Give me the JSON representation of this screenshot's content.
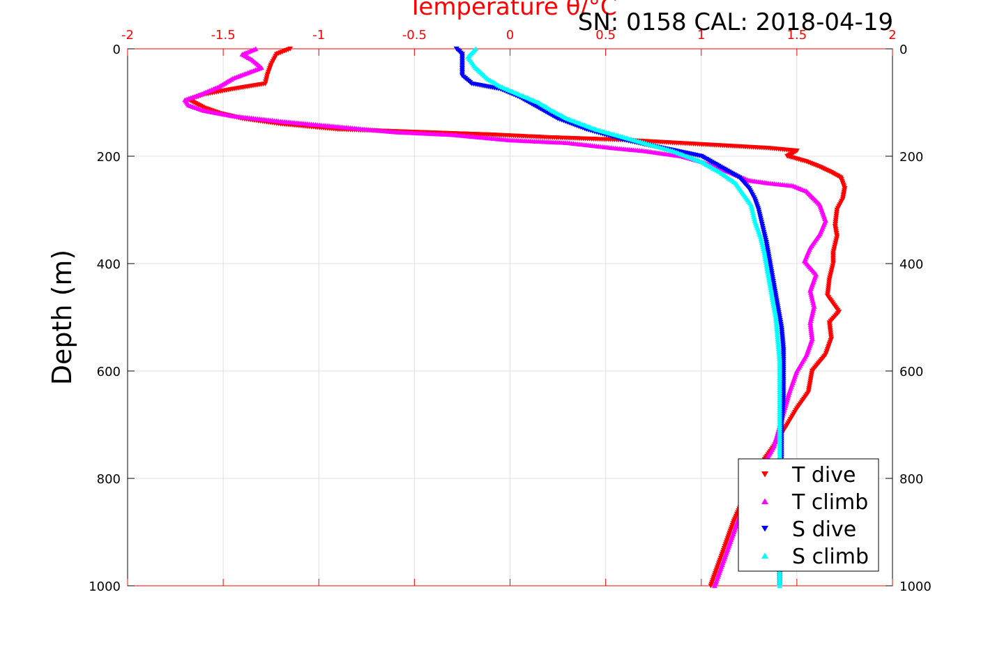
{
  "chart_data": {
    "type": "scatter",
    "title": "SN: 0158  CAL: 2018-04-19",
    "xlabel": "Temperature θ/°C",
    "ylabel": "Depth (m)",
    "xlim": [
      -2,
      2
    ],
    "ylim": [
      0,
      1000
    ],
    "y_reversed": true,
    "x_ticks": [
      "-2",
      "-1.5",
      "-1",
      "-0.5",
      "0",
      "0.5",
      "1",
      "1.5",
      "2"
    ],
    "y_ticks": [
      "0",
      "200",
      "400",
      "600",
      "800",
      "1000"
    ],
    "grid": true,
    "legend_position": "bottom-right",
    "colors": {
      "axis_x": "#ff0000",
      "t_dive": "#ff0000",
      "t_climb": "#ff00ff",
      "s_dive": "#0000ff",
      "s_climb": "#00ffff"
    },
    "series": [
      {
        "name": "T dive",
        "marker": "triangle-down",
        "color": "#ff0000",
        "points": [
          [
            -1.15,
            0
          ],
          [
            -1.22,
            10
          ],
          [
            -1.25,
            30
          ],
          [
            -1.27,
            50
          ],
          [
            -1.28,
            65
          ],
          [
            -1.45,
            75
          ],
          [
            -1.6,
            85
          ],
          [
            -1.68,
            95
          ],
          [
            -1.6,
            110
          ],
          [
            -1.52,
            120
          ],
          [
            -1.4,
            130
          ],
          [
            -1.2,
            140
          ],
          [
            -0.9,
            150
          ],
          [
            -0.5,
            155
          ],
          [
            -0.1,
            160
          ],
          [
            0.2,
            165
          ],
          [
            0.6,
            170
          ],
          [
            0.85,
            175
          ],
          [
            1.1,
            180
          ],
          [
            1.35,
            185
          ],
          [
            1.5,
            190
          ],
          [
            1.45,
            200
          ],
          [
            1.55,
            210
          ],
          [
            1.62,
            220
          ],
          [
            1.68,
            230
          ],
          [
            1.73,
            240
          ],
          [
            1.75,
            260
          ],
          [
            1.74,
            280
          ],
          [
            1.71,
            300
          ],
          [
            1.7,
            330
          ],
          [
            1.71,
            350
          ],
          [
            1.69,
            380
          ],
          [
            1.69,
            400
          ],
          [
            1.67,
            430
          ],
          [
            1.66,
            460
          ],
          [
            1.72,
            490
          ],
          [
            1.67,
            510
          ],
          [
            1.68,
            540
          ],
          [
            1.65,
            570
          ],
          [
            1.58,
            600
          ],
          [
            1.56,
            640
          ],
          [
            1.5,
            670
          ],
          [
            1.45,
            700
          ],
          [
            1.38,
            740
          ],
          [
            1.3,
            780
          ],
          [
            1.22,
            840
          ],
          [
            1.17,
            880
          ],
          [
            1.12,
            930
          ],
          [
            1.08,
            970
          ],
          [
            1.05,
            1000
          ]
        ]
      },
      {
        "name": "T climb",
        "marker": "triangle-up",
        "color": "#ff00ff",
        "points": [
          [
            -1.33,
            0
          ],
          [
            -1.4,
            10
          ],
          [
            -1.35,
            20
          ],
          [
            -1.3,
            35
          ],
          [
            -1.45,
            55
          ],
          [
            -1.52,
            70
          ],
          [
            -1.62,
            85
          ],
          [
            -1.7,
            95
          ],
          [
            -1.68,
            105
          ],
          [
            -1.6,
            115
          ],
          [
            -1.45,
            125
          ],
          [
            -1.2,
            135
          ],
          [
            -0.9,
            145
          ],
          [
            -0.6,
            155
          ],
          [
            -0.3,
            160
          ],
          [
            0.0,
            170
          ],
          [
            0.3,
            175
          ],
          [
            0.55,
            185
          ],
          [
            0.7,
            190
          ],
          [
            0.9,
            200
          ],
          [
            1.0,
            210
          ],
          [
            1.15,
            230
          ],
          [
            1.25,
            245
          ],
          [
            1.35,
            250
          ],
          [
            1.48,
            255
          ],
          [
            1.55,
            265
          ],
          [
            1.62,
            290
          ],
          [
            1.65,
            320
          ],
          [
            1.62,
            345
          ],
          [
            1.57,
            370
          ],
          [
            1.54,
            395
          ],
          [
            1.6,
            420
          ],
          [
            1.57,
            450
          ],
          [
            1.59,
            480
          ],
          [
            1.57,
            510
          ],
          [
            1.58,
            540
          ],
          [
            1.55,
            570
          ],
          [
            1.5,
            600
          ],
          [
            1.46,
            640
          ],
          [
            1.42,
            690
          ],
          [
            1.38,
            740
          ],
          [
            1.3,
            790
          ],
          [
            1.22,
            850
          ],
          [
            1.17,
            900
          ],
          [
            1.12,
            950
          ],
          [
            1.08,
            990
          ],
          [
            1.07,
            1000
          ]
        ]
      },
      {
        "name": "S dive",
        "marker": "triangle-down",
        "color": "#0000ff",
        "points": [
          [
            -0.28,
            0
          ],
          [
            -0.25,
            10
          ],
          [
            -0.25,
            30
          ],
          [
            -0.25,
            50
          ],
          [
            -0.2,
            65
          ],
          [
            -0.05,
            75
          ],
          [
            0.05,
            90
          ],
          [
            0.15,
            110
          ],
          [
            0.25,
            130
          ],
          [
            0.4,
            150
          ],
          [
            0.6,
            170
          ],
          [
            0.8,
            185
          ],
          [
            1.0,
            200
          ],
          [
            1.1,
            220
          ],
          [
            1.2,
            240
          ],
          [
            1.25,
            260
          ],
          [
            1.28,
            280
          ],
          [
            1.3,
            300
          ],
          [
            1.32,
            330
          ],
          [
            1.34,
            360
          ],
          [
            1.36,
            400
          ],
          [
            1.38,
            440
          ],
          [
            1.4,
            480
          ],
          [
            1.42,
            520
          ],
          [
            1.43,
            560
          ],
          [
            1.43,
            600
          ],
          [
            1.43,
            650
          ],
          [
            1.42,
            700
          ],
          [
            1.42,
            760
          ],
          [
            1.41,
            820
          ],
          [
            1.41,
            880
          ],
          [
            1.41,
            940
          ],
          [
            1.41,
            1000
          ]
        ]
      },
      {
        "name": "S climb",
        "marker": "triangle-up",
        "color": "#00ffff",
        "points": [
          [
            -0.18,
            0
          ],
          [
            -0.22,
            15
          ],
          [
            -0.18,
            35
          ],
          [
            -0.12,
            55
          ],
          [
            -0.05,
            70
          ],
          [
            0.05,
            85
          ],
          [
            0.15,
            100
          ],
          [
            0.22,
            115
          ],
          [
            0.3,
            130
          ],
          [
            0.45,
            150
          ],
          [
            0.65,
            170
          ],
          [
            0.85,
            190
          ],
          [
            1.0,
            210
          ],
          [
            1.1,
            230
          ],
          [
            1.18,
            250
          ],
          [
            1.22,
            270
          ],
          [
            1.26,
            290
          ],
          [
            1.28,
            320
          ],
          [
            1.31,
            350
          ],
          [
            1.33,
            380
          ],
          [
            1.35,
            420
          ],
          [
            1.37,
            460
          ],
          [
            1.39,
            500
          ],
          [
            1.4,
            540
          ],
          [
            1.41,
            580
          ],
          [
            1.41,
            620
          ],
          [
            1.41,
            680
          ],
          [
            1.41,
            740
          ],
          [
            1.41,
            800
          ],
          [
            1.41,
            860
          ],
          [
            1.41,
            920
          ],
          [
            1.41,
            1000
          ]
        ]
      }
    ]
  }
}
